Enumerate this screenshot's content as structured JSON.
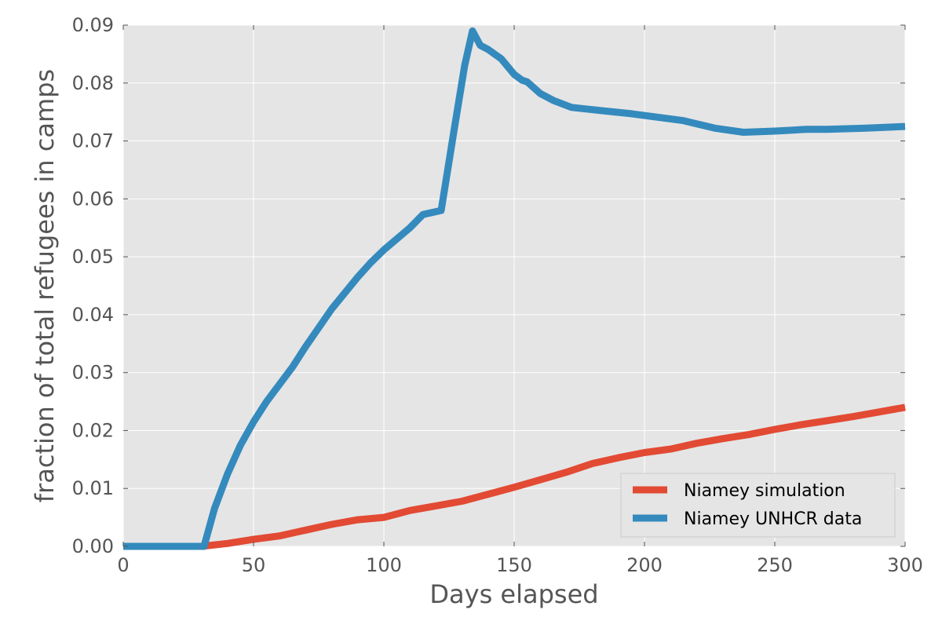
{
  "chart_data": {
    "type": "line",
    "xlabel": "Days elapsed",
    "ylabel": "fraction of total refugees in camps",
    "xlim": [
      0,
      300
    ],
    "ylim": [
      0,
      0.09
    ],
    "x_ticks": [
      "0",
      "50",
      "100",
      "150",
      "200",
      "250",
      "300"
    ],
    "y_ticks": [
      "0.00",
      "0.01",
      "0.02",
      "0.03",
      "0.04",
      "0.05",
      "0.06",
      "0.07",
      "0.08",
      "0.09"
    ],
    "grid": true,
    "legend_position": "lower right",
    "background_color": "#e5e5e5",
    "series": [
      {
        "name": "Niamey simulation",
        "color": "#e24a33",
        "x": [
          0,
          30,
          40,
          50,
          60,
          70,
          80,
          90,
          100,
          110,
          120,
          130,
          140,
          150,
          160,
          170,
          180,
          190,
          200,
          210,
          220,
          230,
          240,
          250,
          260,
          270,
          280,
          290,
          300
        ],
        "y": [
          0,
          0,
          0.0005,
          0.0012,
          0.0018,
          0.0028,
          0.0038,
          0.0046,
          0.005,
          0.0062,
          0.007,
          0.0078,
          0.009,
          0.0102,
          0.0115,
          0.0128,
          0.0143,
          0.0153,
          0.0162,
          0.0168,
          0.0178,
          0.0186,
          0.0193,
          0.0202,
          0.021,
          0.0217,
          0.0224,
          0.0232,
          0.024
        ]
      },
      {
        "name": "Niamey UNHCR data",
        "color": "#348abd",
        "x": [
          0,
          31,
          35,
          40,
          45,
          50,
          55,
          60,
          65,
          70,
          80,
          90,
          95,
          100,
          110,
          115,
          122,
          127,
          131,
          134,
          137,
          140,
          145,
          150,
          153,
          155,
          160,
          165,
          172,
          180,
          195,
          215,
          227,
          238,
          250,
          262,
          270,
          285,
          300
        ],
        "y": [
          0,
          0,
          0.0065,
          0.0125,
          0.0175,
          0.0215,
          0.025,
          0.028,
          0.031,
          0.0345,
          0.041,
          0.0465,
          0.049,
          0.0512,
          0.055,
          0.0573,
          0.058,
          0.072,
          0.083,
          0.089,
          0.0865,
          0.0858,
          0.0842,
          0.0815,
          0.0805,
          0.0802,
          0.0782,
          0.077,
          0.0758,
          0.0754,
          0.0747,
          0.0735,
          0.0722,
          0.0715,
          0.0717,
          0.072,
          0.072,
          0.0722,
          0.0725
        ]
      }
    ]
  }
}
